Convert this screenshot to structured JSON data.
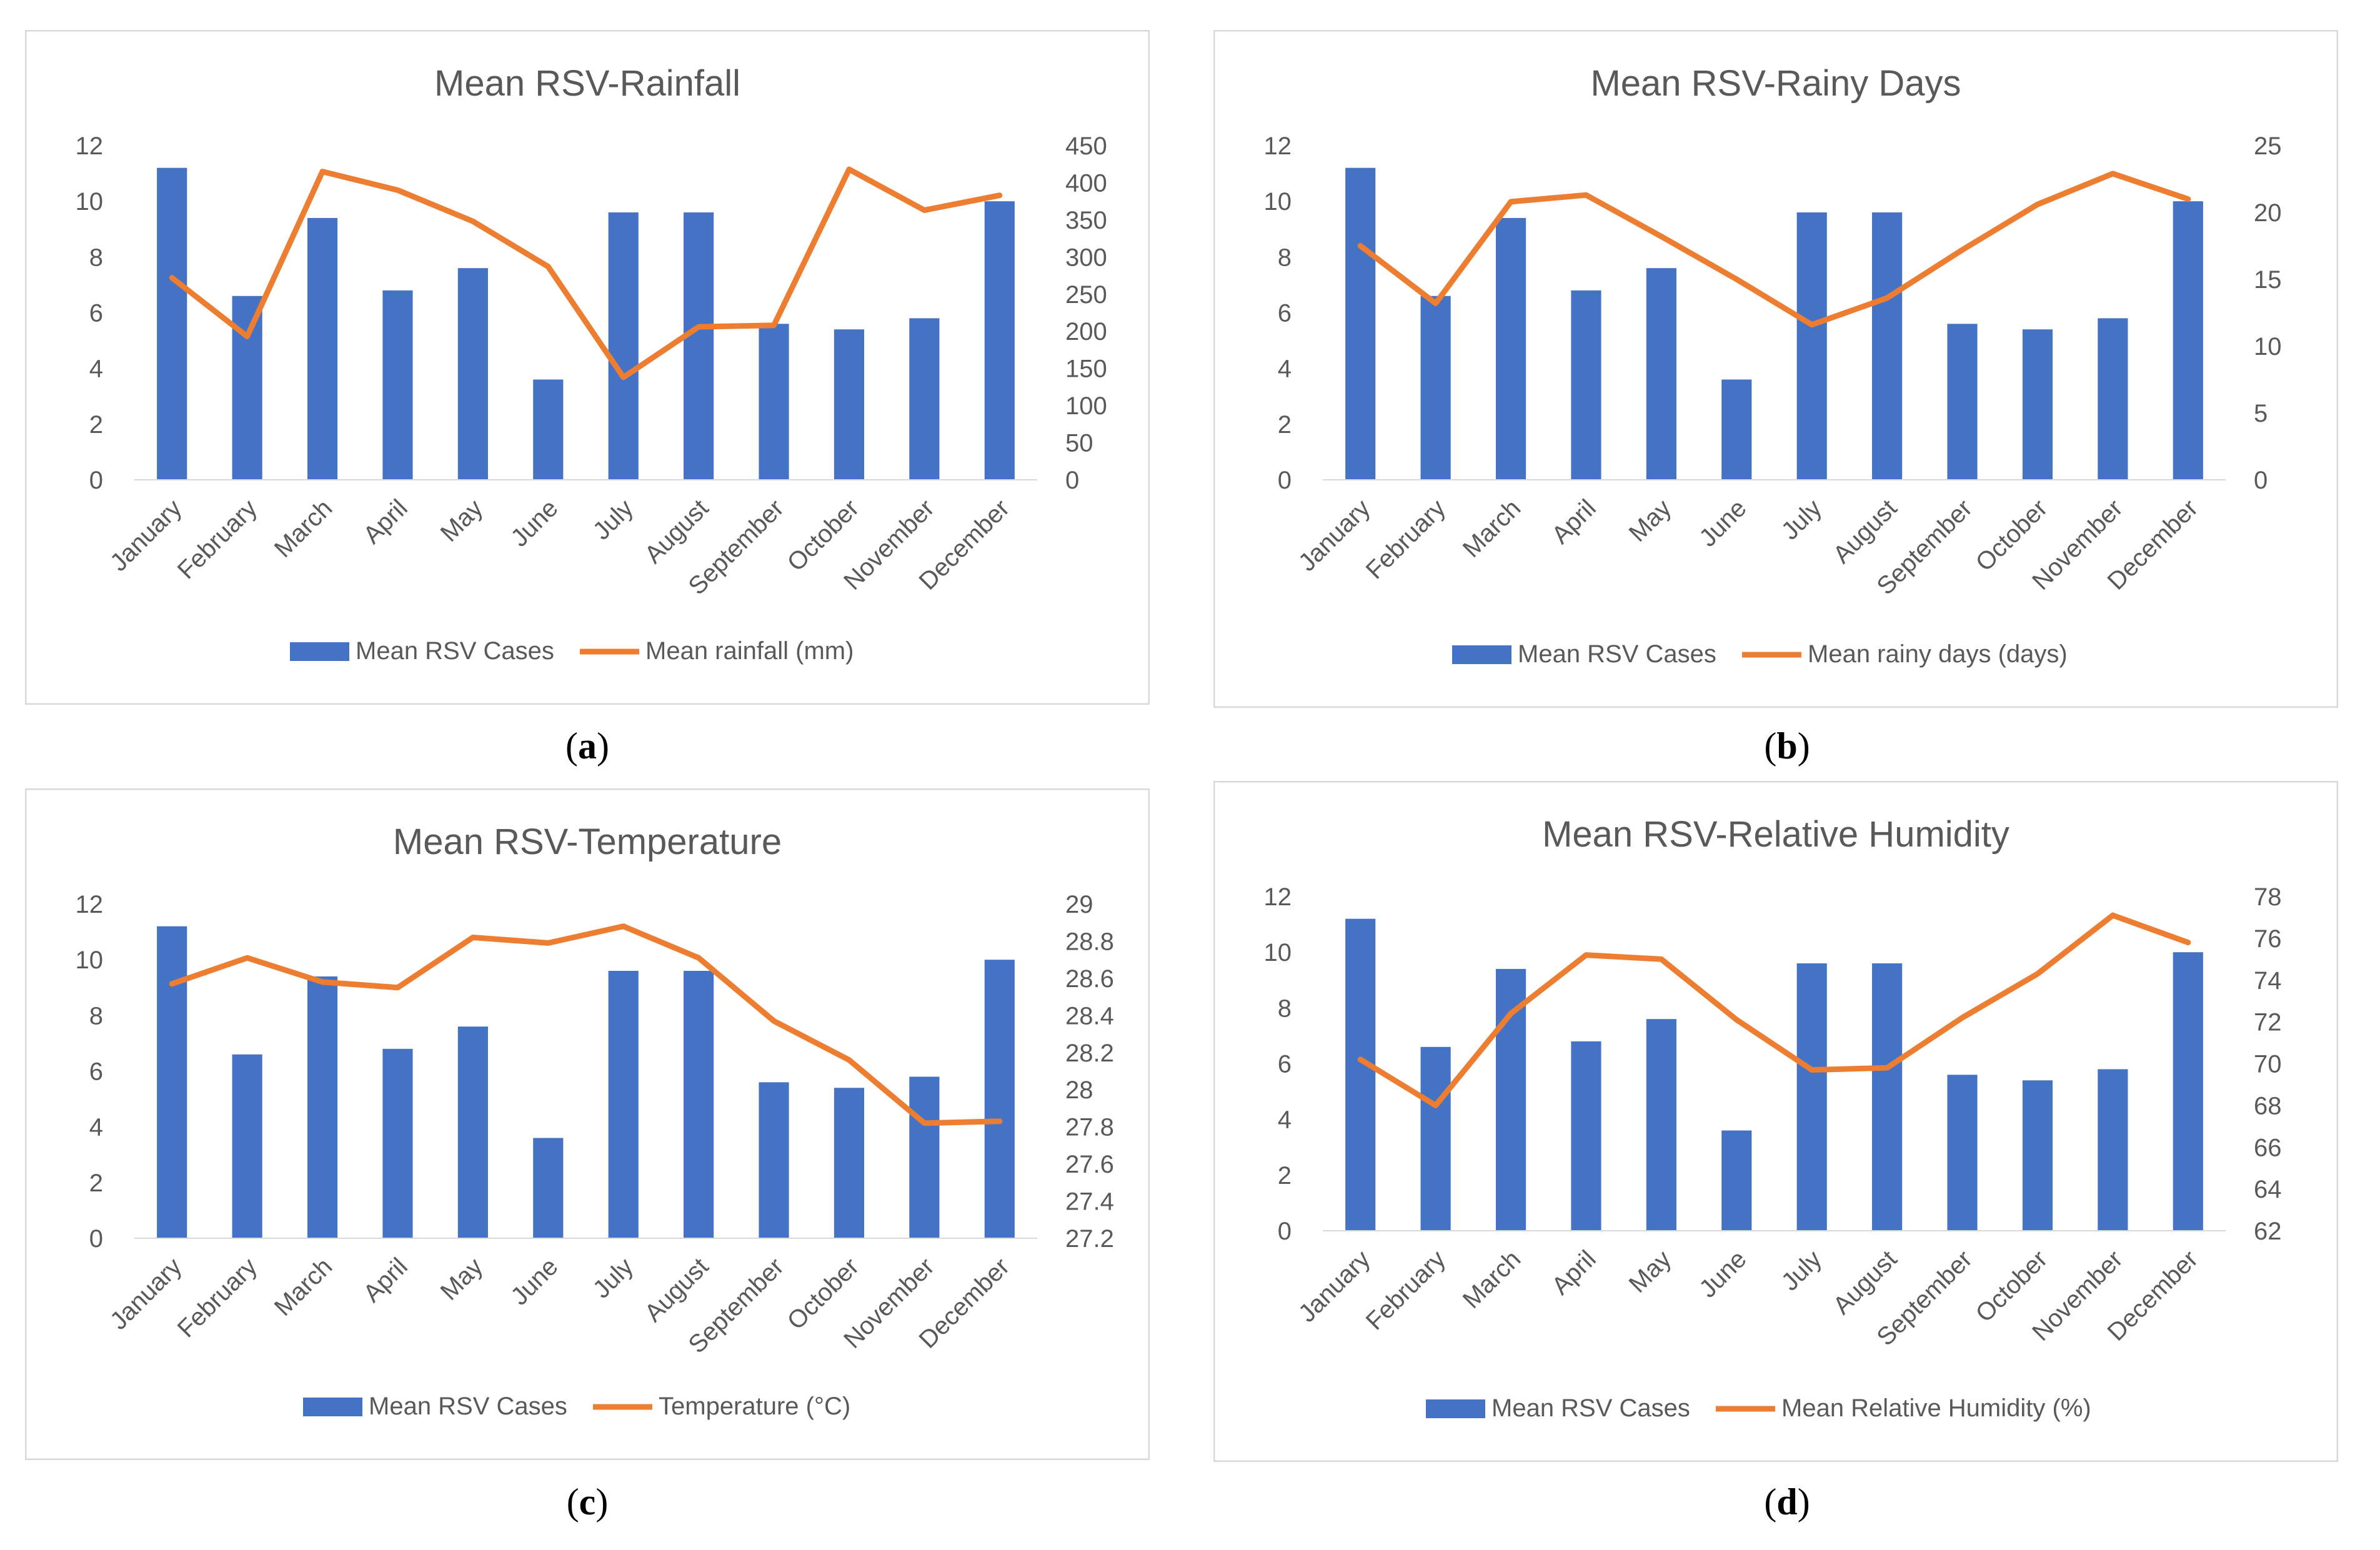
{
  "chart_data": [
    {
      "id": "a",
      "type": "bar",
      "title": "Mean RSV-Rainfall",
      "categories": [
        "January",
        "February",
        "March",
        "April",
        "May",
        "June",
        "July",
        "August",
        "September",
        "October",
        "November",
        "December"
      ],
      "series": [
        {
          "name": "Mean RSV Cases",
          "kind": "bar",
          "axis": "left",
          "values": [
            11.2,
            6.6,
            9.4,
            6.8,
            7.6,
            3.6,
            9.6,
            9.6,
            5.6,
            5.4,
            5.8,
            10.0
          ]
        },
        {
          "name": "Mean rainfall (mm)",
          "kind": "line",
          "axis": "right",
          "values": [
            272,
            193,
            415,
            390,
            348,
            287,
            138,
            206,
            208,
            418,
            363,
            383
          ]
        }
      ],
      "y_left": {
        "min": 0,
        "max": 12,
        "step": 2,
        "ticks": [
          "0",
          "2",
          "4",
          "6",
          "8",
          "10",
          "12"
        ]
      },
      "y_right": {
        "min": 0,
        "max": 450,
        "step": 50,
        "ticks": [
          "0",
          "50",
          "100",
          "150",
          "200",
          "250",
          "300",
          "350",
          "400",
          "450"
        ]
      },
      "legend": "bottom",
      "grid": false
    },
    {
      "id": "b",
      "type": "bar",
      "title": "Mean RSV-Rainy Days",
      "categories": [
        "January",
        "February",
        "March",
        "April",
        "May",
        "June",
        "July",
        "August",
        "September",
        "October",
        "November",
        "December"
      ],
      "series": [
        {
          "name": "Mean RSV Cases",
          "kind": "bar",
          "axis": "left",
          "values": [
            11.2,
            6.6,
            9.4,
            6.8,
            7.6,
            3.6,
            9.6,
            9.6,
            5.6,
            5.4,
            5.8,
            10.0
          ]
        },
        {
          "name": "Mean rainy days (days)",
          "kind": "line",
          "axis": "right",
          "values": [
            17.5,
            13.2,
            20.8,
            21.3,
            18.2,
            15.0,
            11.6,
            13.6,
            17.2,
            20.6,
            22.9,
            21.0
          ]
        }
      ],
      "y_left": {
        "min": 0,
        "max": 12,
        "step": 2,
        "ticks": [
          "0",
          "2",
          "4",
          "6",
          "8",
          "10",
          "12"
        ]
      },
      "y_right": {
        "min": 0,
        "max": 25,
        "step": 5,
        "ticks": [
          "0",
          "5",
          "10",
          "15",
          "20",
          "25"
        ]
      },
      "legend": "bottom",
      "grid": false
    },
    {
      "id": "c",
      "type": "bar",
      "title": "Mean RSV-Temperature",
      "categories": [
        "January",
        "February",
        "March",
        "April",
        "May",
        "June",
        "July",
        "August",
        "September",
        "October",
        "November",
        "December"
      ],
      "series": [
        {
          "name": "Mean RSV Cases",
          "kind": "bar",
          "axis": "left",
          "values": [
            11.2,
            6.6,
            9.4,
            6.8,
            7.6,
            3.6,
            9.6,
            9.6,
            5.6,
            5.4,
            5.8,
            10.0
          ]
        },
        {
          "name": "Temperature (°C)",
          "kind": "line",
          "axis": "right",
          "values": [
            28.57,
            28.71,
            28.58,
            28.55,
            28.82,
            28.79,
            28.88,
            28.71,
            28.37,
            28.16,
            27.82,
            27.83
          ]
        }
      ],
      "y_left": {
        "min": 0,
        "max": 12,
        "step": 2,
        "ticks": [
          "0",
          "2",
          "4",
          "6",
          "8",
          "10",
          "12"
        ]
      },
      "y_right": {
        "min": 27.2,
        "max": 29,
        "step": 0.2,
        "ticks": [
          "27.2",
          "27.4",
          "27.6",
          "27.8",
          "28",
          "28.2",
          "28.4",
          "28.6",
          "28.8",
          "29"
        ]
      },
      "legend": "bottom",
      "grid": false
    },
    {
      "id": "d",
      "type": "bar",
      "title": "Mean RSV-Relative Humidity",
      "categories": [
        "January",
        "February",
        "March",
        "April",
        "May",
        "June",
        "July",
        "August",
        "September",
        "October",
        "November",
        "December"
      ],
      "series": [
        {
          "name": "Mean RSV Cases",
          "kind": "bar",
          "axis": "left",
          "values": [
            11.2,
            6.6,
            9.4,
            6.8,
            7.6,
            3.6,
            9.6,
            9.6,
            5.6,
            5.4,
            5.8,
            10.0
          ]
        },
        {
          "name": "Mean Relative Humidity (%)",
          "kind": "line",
          "axis": "right",
          "values": [
            70.2,
            68.0,
            72.4,
            75.2,
            75.0,
            72.1,
            69.7,
            69.8,
            72.2,
            74.3,
            77.1,
            75.8
          ]
        }
      ],
      "y_left": {
        "min": 0,
        "max": 12,
        "step": 2,
        "ticks": [
          "0",
          "2",
          "4",
          "6",
          "8",
          "10",
          "12"
        ]
      },
      "y_right": {
        "min": 62,
        "max": 78,
        "step": 2,
        "ticks": [
          "62",
          "64",
          "66",
          "68",
          "70",
          "72",
          "74",
          "76",
          "78"
        ]
      },
      "legend": "bottom",
      "grid": false
    }
  ],
  "subfigure_labels": [
    {
      "open": "(",
      "letter": "a",
      "close": ")"
    },
    {
      "open": "(",
      "letter": "b",
      "close": ")"
    },
    {
      "open": "(",
      "letter": "c",
      "close": ")"
    },
    {
      "open": "(",
      "letter": "d",
      "close": ")"
    }
  ],
  "colors": {
    "bar": "#4472c4",
    "line": "#ed7d31",
    "axis_text": "#595959",
    "title": "#595959",
    "border": "#d9d9d9"
  }
}
